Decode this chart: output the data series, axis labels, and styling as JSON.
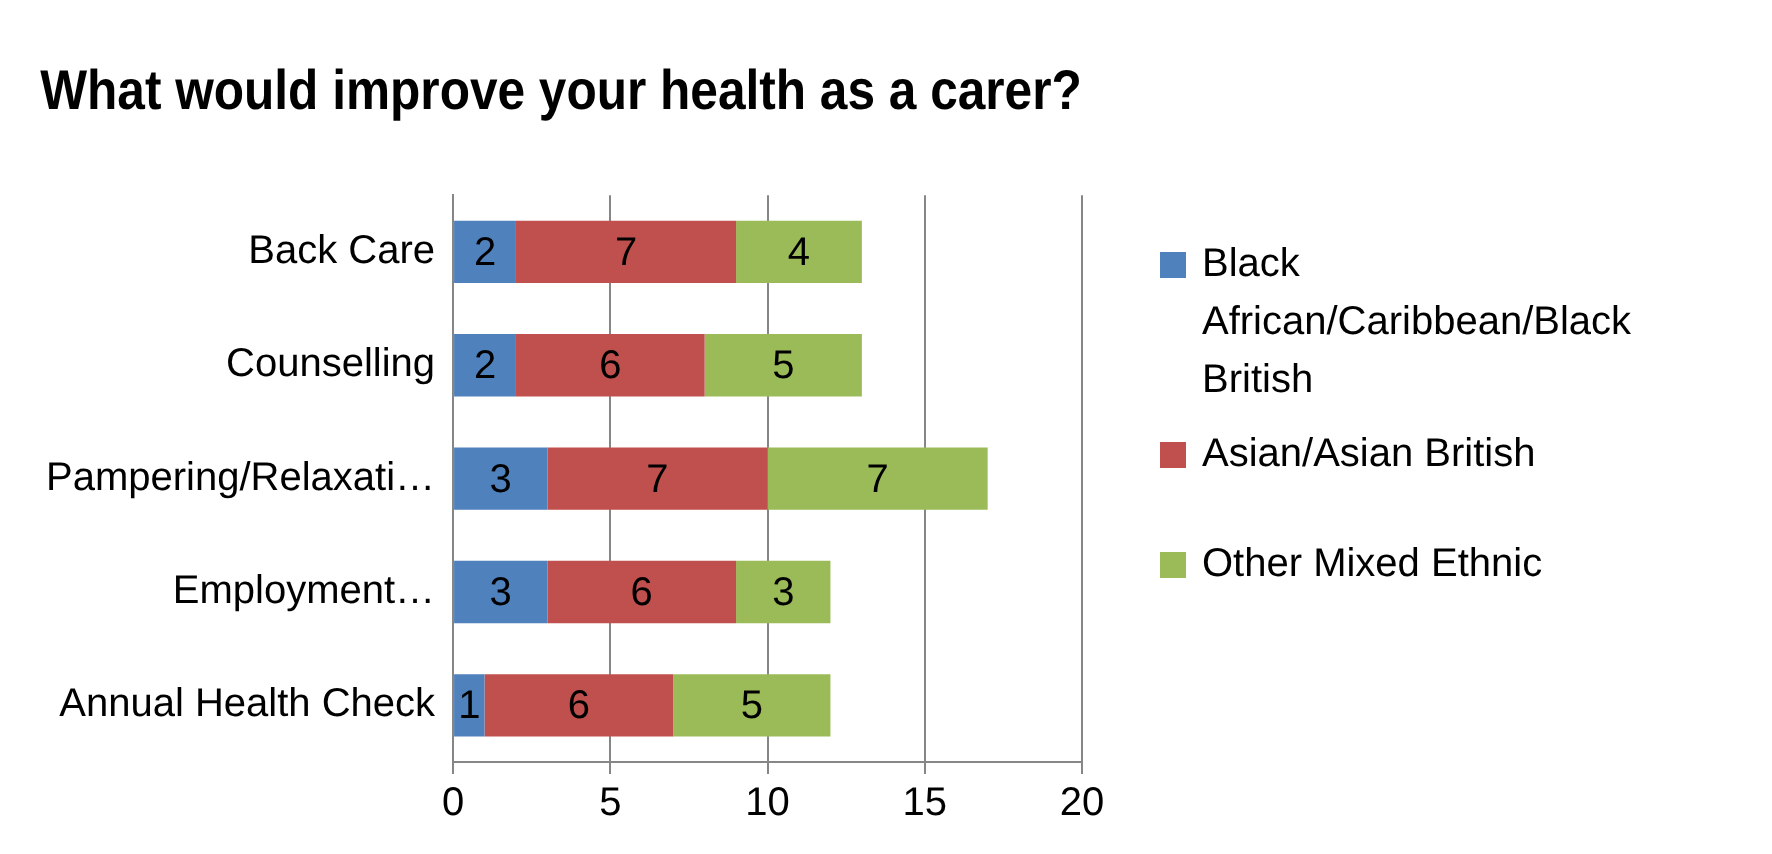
{
  "chart_data": {
    "type": "bar",
    "title": "What would improve your health as a carer?",
    "orientation": "horizontal",
    "stacked": true,
    "categories": [
      "Back Care",
      "Counselling",
      "Pampering/Relaxati…",
      "Employment…",
      "Annual Health Check"
    ],
    "series": [
      {
        "name": "Black African/Caribbean/Black British",
        "color": "#4f81bd",
        "values": [
          2,
          2,
          3,
          3,
          1
        ]
      },
      {
        "name": "Asian/Asian British",
        "color": "#c0504d",
        "values": [
          7,
          6,
          7,
          6,
          6
        ]
      },
      {
        "name": "Other Mixed Ethnic",
        "color": "#9bbb59",
        "values": [
          4,
          5,
          7,
          3,
          5
        ]
      }
    ],
    "xlim": [
      0,
      20
    ],
    "xticks": [
      0,
      5,
      10,
      15,
      20
    ],
    "grid": "x",
    "legend": "right",
    "data_labels": true
  }
}
